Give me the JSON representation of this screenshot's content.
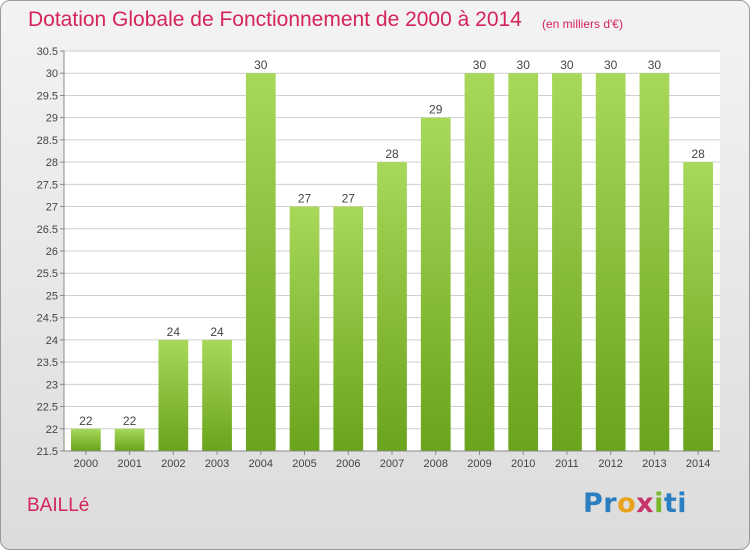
{
  "header": {
    "title": "Dotation Globale de Fonctionnement de 2000 à 2014",
    "subtitle": "(en milliers d'€)"
  },
  "commune": "BAILLé",
  "logo": {
    "parts": [
      "Pr",
      "o",
      "x",
      "i",
      "ti"
    ]
  },
  "colors": {
    "title": "#d4245a",
    "bar_light": "#a8d85a",
    "bar_dark": "#6aa31c",
    "grid": "#cfcfcf"
  },
  "chart_data": {
    "type": "bar",
    "categories": [
      "2000",
      "2001",
      "2002",
      "2003",
      "2004",
      "2005",
      "2006",
      "2007",
      "2008",
      "2009",
      "2010",
      "2011",
      "2012",
      "2013",
      "2014"
    ],
    "values": [
      22,
      22,
      24,
      24,
      30,
      27,
      27,
      28,
      29,
      30,
      30,
      30,
      30,
      30,
      28
    ],
    "value_labels": [
      "22",
      "22",
      "24",
      "24",
      "30",
      "27",
      "27",
      "28",
      "29",
      "30",
      "30",
      "30",
      "30",
      "30",
      "28"
    ],
    "ylim": [
      21.5,
      30.5
    ],
    "yticks": [
      "21.5",
      "22",
      "22.5",
      "23",
      "23.5",
      "24",
      "24.5",
      "25",
      "25.5",
      "26",
      "26.5",
      "27",
      "27.5",
      "28",
      "28.5",
      "29",
      "29.5",
      "30",
      "30.5"
    ],
    "grid": true,
    "xlabel": "",
    "ylabel": ""
  }
}
